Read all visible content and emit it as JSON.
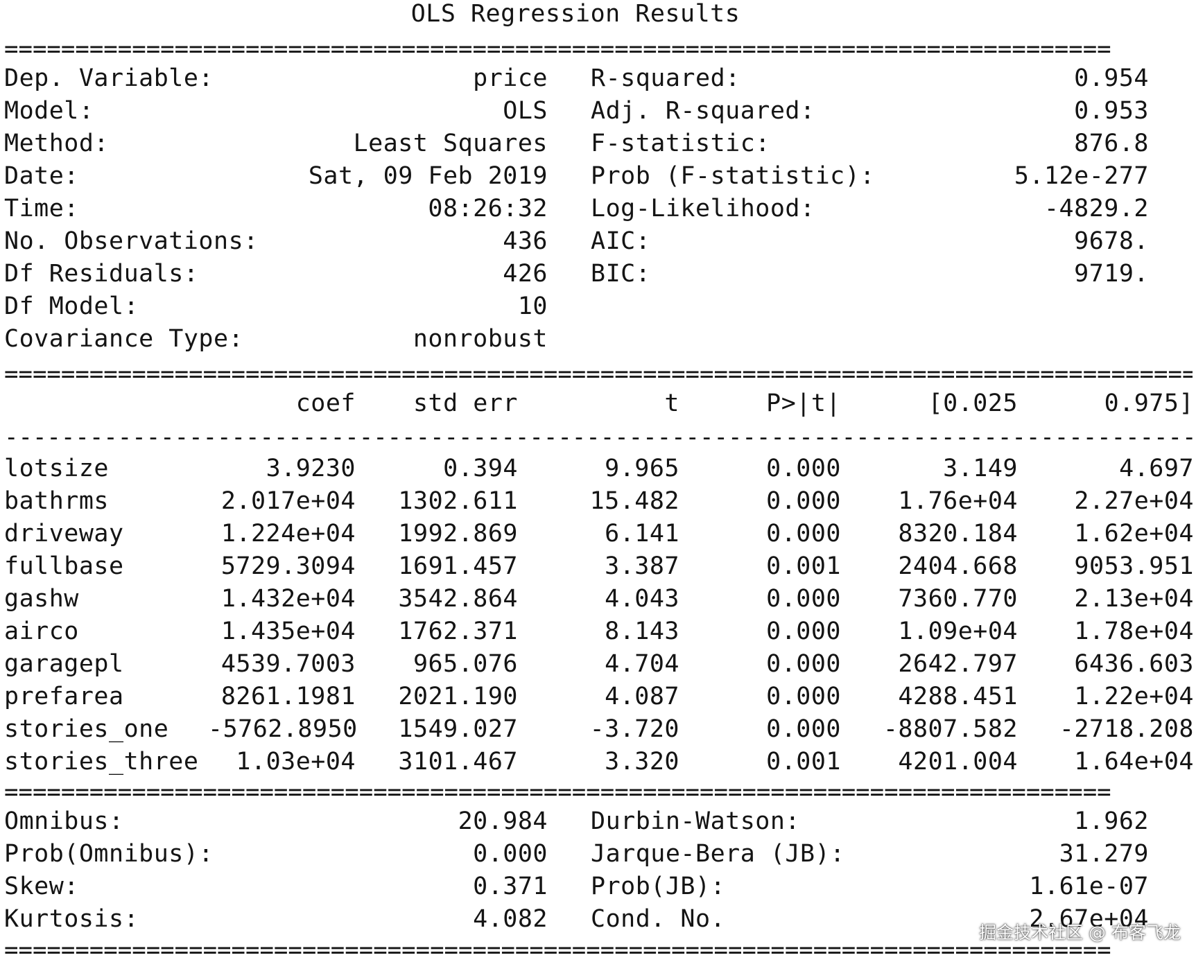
{
  "title": "OLS Regression Results",
  "rule_double": "==============================================================================",
  "rule_double_wide": "=====================================================================================================",
  "rule_single": "-------------------------------------------------------------------------------------------------------",
  "summary_left": [
    {
      "label": "Dep. Variable:",
      "value": "price"
    },
    {
      "label": "Model:",
      "value": "OLS"
    },
    {
      "label": "Method:",
      "value": "Least Squares"
    },
    {
      "label": "Date:",
      "value": "Sat, 09 Feb 2019"
    },
    {
      "label": "Time:",
      "value": "08:26:32"
    },
    {
      "label": "No. Observations:",
      "value": "436"
    },
    {
      "label": "Df Residuals:",
      "value": "426"
    },
    {
      "label": "Df Model:",
      "value": "10"
    },
    {
      "label": "Covariance Type:",
      "value": "nonrobust"
    }
  ],
  "summary_right": [
    {
      "label": "R-squared:",
      "value": "0.954"
    },
    {
      "label": "Adj. R-squared:",
      "value": "0.953"
    },
    {
      "label": "F-statistic:",
      "value": "876.8"
    },
    {
      "label": "Prob (F-statistic):",
      "value": "5.12e-277"
    },
    {
      "label": "Log-Likelihood:",
      "value": "-4829.2"
    },
    {
      "label": "AIC:",
      "value": "9678."
    },
    {
      "label": "BIC:",
      "value": "9719."
    }
  ],
  "coef_headers": [
    "coef",
    "std err",
    "t",
    "P>|t|",
    "[0.025",
    "0.975]"
  ],
  "coef_rows": [
    {
      "name": "lotsize",
      "cells": [
        "3.9230",
        "0.394",
        "9.965",
        "0.000",
        "3.149",
        "4.697"
      ]
    },
    {
      "name": "bathrms",
      "cells": [
        "2.017e+04",
        "1302.611",
        "15.482",
        "0.000",
        "1.76e+04",
        "2.27e+04"
      ]
    },
    {
      "name": "driveway",
      "cells": [
        "1.224e+04",
        "1992.869",
        "6.141",
        "0.000",
        "8320.184",
        "1.62e+04"
      ]
    },
    {
      "name": "fullbase",
      "cells": [
        "5729.3094",
        "1691.457",
        "3.387",
        "0.001",
        "2404.668",
        "9053.951"
      ]
    },
    {
      "name": "gashw",
      "cells": [
        "1.432e+04",
        "3542.864",
        "4.043",
        "0.000",
        "7360.770",
        "2.13e+04"
      ]
    },
    {
      "name": "airco",
      "cells": [
        "1.435e+04",
        "1762.371",
        "8.143",
        "0.000",
        "1.09e+04",
        "1.78e+04"
      ]
    },
    {
      "name": "garagepl",
      "cells": [
        "4539.7003",
        "965.076",
        "4.704",
        "0.000",
        "2642.797",
        "6436.603"
      ]
    },
    {
      "name": "prefarea",
      "cells": [
        "8261.1981",
        "2021.190",
        "4.087",
        "0.000",
        "4288.451",
        "1.22e+04"
      ]
    },
    {
      "name": "stories_one",
      "cells": [
        "-5762.8950",
        "1549.027",
        "-3.720",
        "0.000",
        "-8807.582",
        "-2718.208"
      ]
    },
    {
      "name": "stories_three",
      "cells": [
        "1.03e+04",
        "3101.467",
        "3.320",
        "0.001",
        "4201.004",
        "1.64e+04"
      ]
    }
  ],
  "diag_left": [
    {
      "label": "Omnibus:",
      "value": "20.984"
    },
    {
      "label": "Prob(Omnibus):",
      "value": "0.000"
    },
    {
      "label": "Skew:",
      "value": "0.371"
    },
    {
      "label": "Kurtosis:",
      "value": "4.082"
    }
  ],
  "diag_right": [
    {
      "label": "Durbin-Watson:",
      "value": "1.962"
    },
    {
      "label": "Jarque-Bera (JB):",
      "value": "31.279"
    },
    {
      "label": "Prob(JB):",
      "value": "1.61e-07"
    },
    {
      "label": "Cond. No.",
      "value": "2.67e+04"
    }
  ],
  "watermark": "掘金技术社区 @ 布客飞龙"
}
